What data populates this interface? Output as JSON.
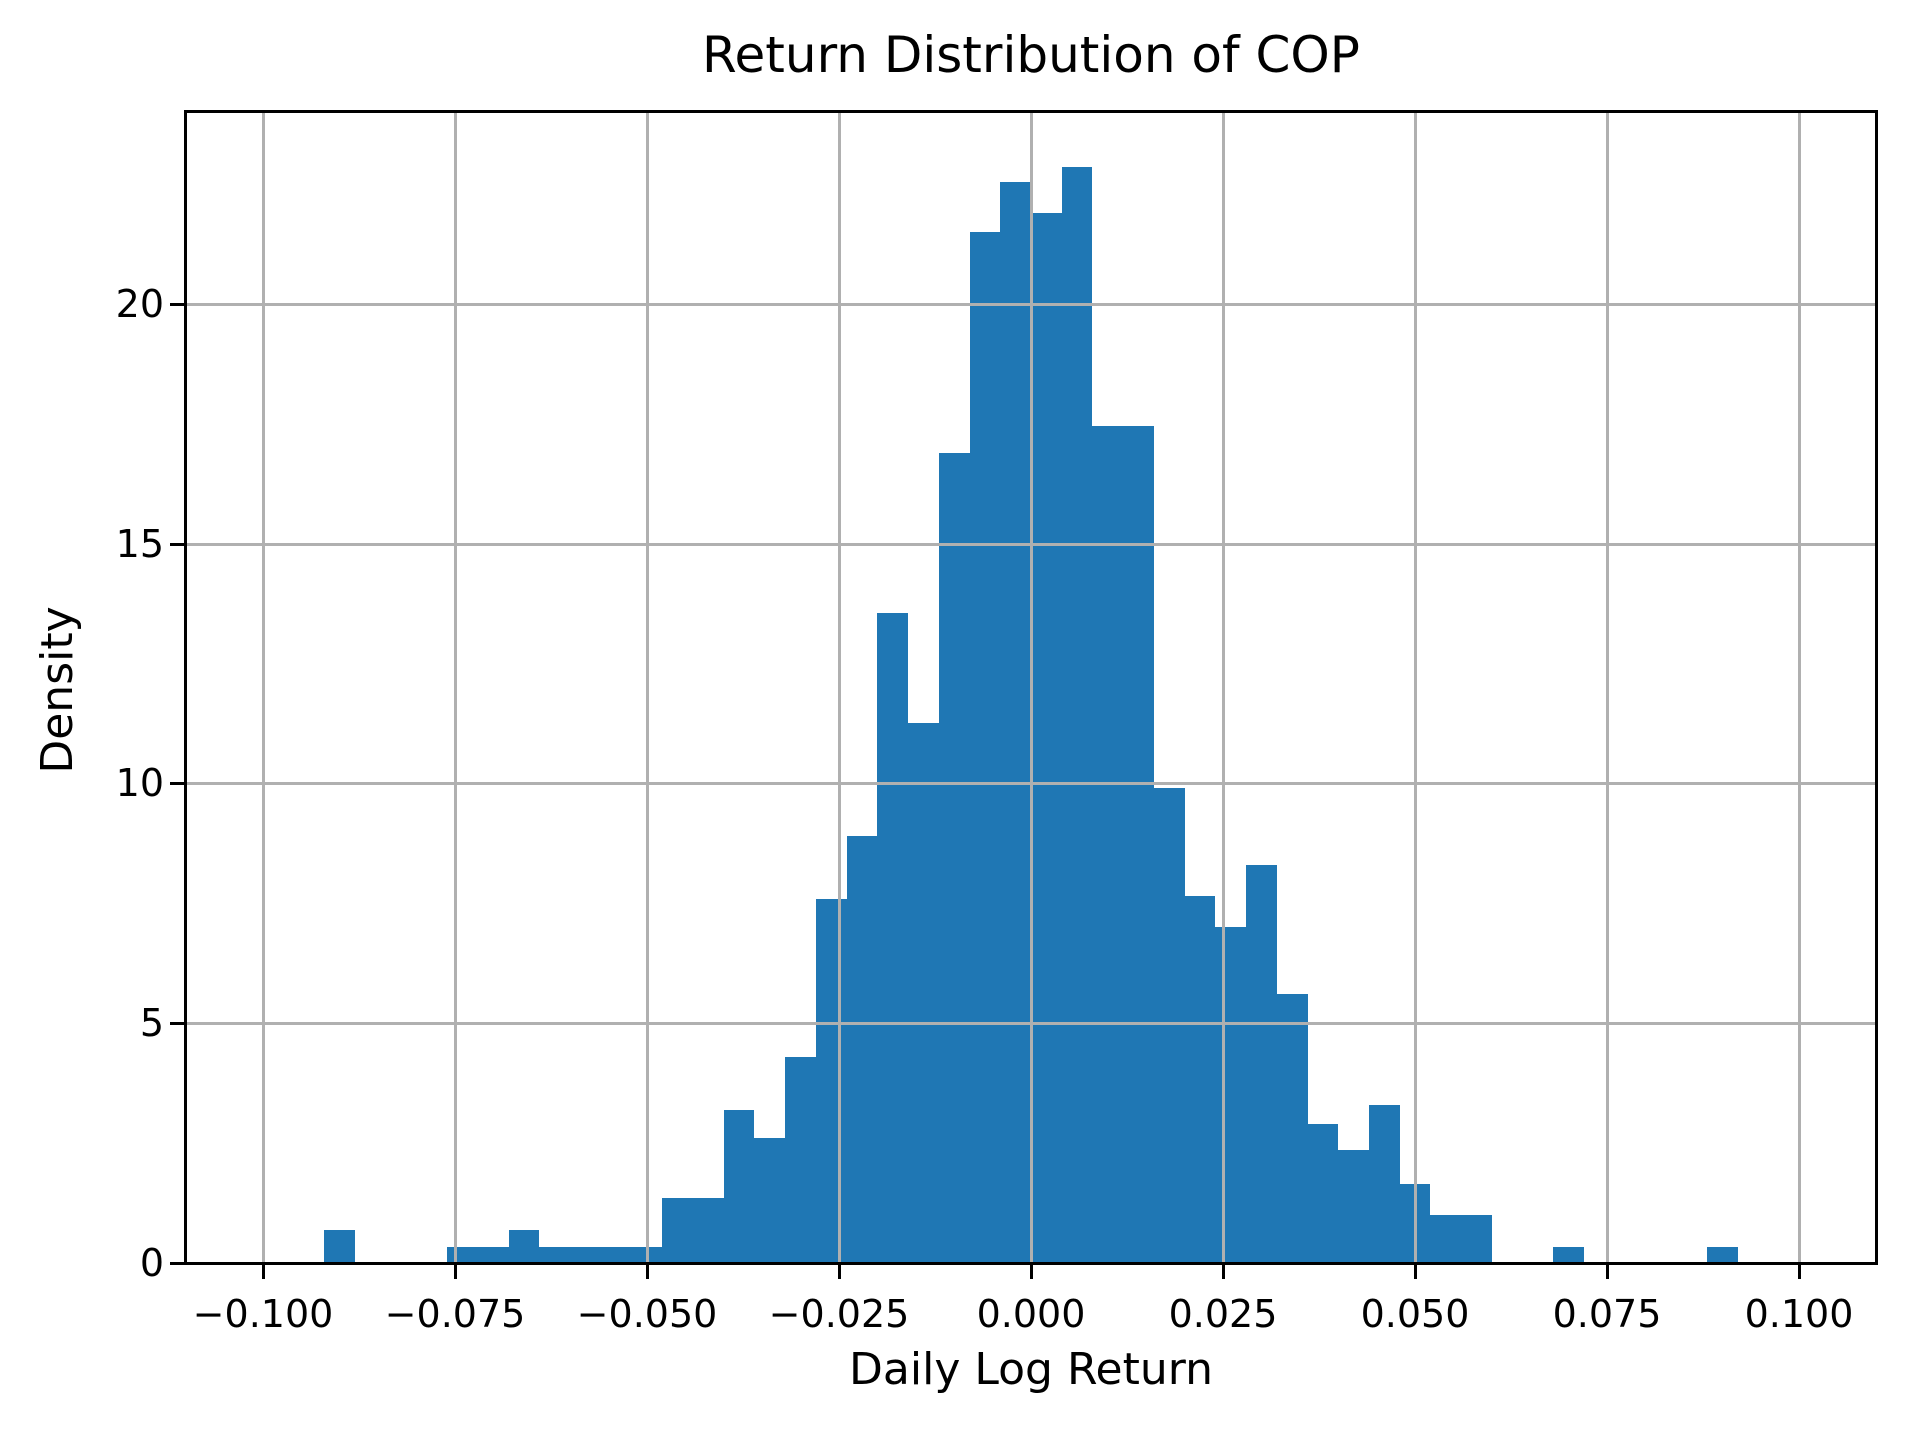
{
  "figure": {
    "background": "#ffffff",
    "text_color": "#000000"
  },
  "chart_data": {
    "type": "bar",
    "subtype": "histogram",
    "title": "Return Distribution of COP",
    "xlabel": "Daily Log Return",
    "ylabel": "Density",
    "legend": null,
    "grid": true,
    "bar_color": "#1f77b4",
    "grid_color": "#b0b0b0",
    "spine_color": "#000000",
    "xlim": [
      -0.11,
      0.11
    ],
    "ylim": [
      0,
      24
    ],
    "x_ticks": [
      -0.1,
      -0.075,
      -0.05,
      -0.025,
      0.0,
      0.025,
      0.05,
      0.075,
      0.1
    ],
    "x_tick_labels": [
      "−0.100",
      "−0.075",
      "−0.050",
      "−0.025",
      "0.000",
      "0.025",
      "0.050",
      "0.075",
      "0.100"
    ],
    "y_ticks": [
      0,
      5,
      10,
      15,
      20
    ],
    "y_tick_labels": [
      "0",
      "5",
      "10",
      "15",
      "20"
    ],
    "bin_width": 0.004,
    "bin_starts": [
      -0.092,
      -0.088,
      -0.084,
      -0.08,
      -0.076,
      -0.072,
      -0.068,
      -0.064,
      -0.06,
      -0.056,
      -0.052,
      -0.048,
      -0.044,
      -0.04,
      -0.036,
      -0.032,
      -0.028,
      -0.024,
      -0.02,
      -0.016,
      -0.012,
      -0.008,
      -0.004,
      0.0,
      0.004,
      0.008,
      0.012,
      0.016,
      0.02,
      0.024,
      0.028,
      0.032,
      0.036,
      0.04,
      0.044,
      0.048,
      0.052,
      0.056,
      0.06,
      0.064,
      0.068,
      0.072,
      0.076,
      0.08,
      0.084,
      0.088
    ],
    "densities": [
      0.68,
      0,
      0,
      0,
      0.34,
      0.34,
      0.68,
      0.34,
      0.34,
      0.34,
      0.34,
      1.35,
      1.35,
      3.2,
      2.6,
      4.3,
      7.6,
      8.9,
      13.55,
      11.25,
      16.9,
      21.5,
      22.55,
      21.9,
      22.85,
      17.45,
      17.45,
      9.9,
      7.65,
      7.0,
      8.3,
      5.6,
      2.9,
      2.35,
      3.3,
      1.65,
      1.0,
      1.0,
      0,
      0,
      0.34,
      0,
      0,
      0,
      0,
      0.34
    ]
  }
}
